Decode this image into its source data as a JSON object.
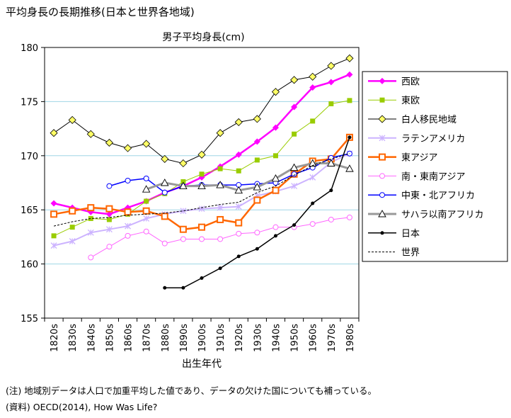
{
  "title": "平均身長の長期推移(日本と世界各地域)",
  "notes": {
    "note1": "(注) 地域別データは人口で加重平均した値であり、データの欠けた国についても補っている。",
    "note2": "(資料) OECD(2014), How Was Life?"
  },
  "chart_data": {
    "type": "line",
    "title": "男子平均身長(cm)",
    "xlabel": "出生年代",
    "ylabel": "",
    "ylim": [
      155,
      180
    ],
    "yticks": [
      155,
      160,
      165,
      170,
      175,
      180
    ],
    "categories": [
      "1820s",
      "1830s",
      "1840s",
      "1850s",
      "1860s",
      "1870s",
      "1880s",
      "1890s",
      "1900s",
      "1910s",
      "1920s",
      "1930s",
      "1940s",
      "1950s",
      "1960s",
      "1970s",
      "1980s"
    ],
    "grid": true,
    "legend": "right",
    "series": [
      {
        "name": "西欧",
        "color": "#ff00ff",
        "marker": "diamond",
        "width": 2.5,
        "values": [
          165.6,
          165.2,
          164.8,
          164.6,
          165.2,
          165.8,
          166.6,
          167.2,
          168.0,
          169.0,
          170.1,
          171.3,
          172.6,
          174.5,
          176.3,
          176.8,
          177.5
        ]
      },
      {
        "name": "東欧",
        "color": "#99cc00",
        "marker": "square",
        "width": 1,
        "values": [
          162.6,
          163.4,
          164.2,
          164.1,
          164.6,
          165.8,
          166.5,
          167.6,
          168.3,
          168.8,
          168.6,
          169.6,
          170.0,
          172.0,
          173.2,
          174.8,
          175.1
        ]
      },
      {
        "name": "白人移民地域",
        "color": "#000000",
        "marker": "diamond-yellow",
        "width": 1,
        "values": [
          172.1,
          173.3,
          172.0,
          171.2,
          170.7,
          171.1,
          169.7,
          169.3,
          170.1,
          172.1,
          173.1,
          173.4,
          175.9,
          177.0,
          177.3,
          178.3,
          179.0
        ]
      },
      {
        "name": "ラテンアメリカ",
        "color": "#ccb3ff",
        "marker": "star",
        "width": 2,
        "values": [
          161.7,
          162.1,
          162.9,
          163.2,
          163.5,
          164.2,
          164.6,
          164.9,
          165.1,
          165.2,
          165.3,
          166.3,
          166.7,
          167.2,
          168.0,
          169.4,
          170.2
        ]
      },
      {
        "name": "東アジア",
        "color": "#ff6600",
        "marker": "square-orange",
        "width": 2.5,
        "values": [
          164.6,
          164.9,
          165.2,
          165.1,
          164.8,
          164.9,
          164.4,
          163.2,
          163.4,
          164.1,
          163.8,
          165.9,
          166.8,
          168.3,
          169.5,
          169.7,
          171.7
        ]
      },
      {
        "name": "南・東南アジア",
        "color": "#ff66ff",
        "marker": "circle-open",
        "width": 1,
        "values": [
          null,
          null,
          160.6,
          161.6,
          162.6,
          163.0,
          161.9,
          162.3,
          162.3,
          162.3,
          162.8,
          162.9,
          163.4,
          163.4,
          163.7,
          164.1,
          164.3
        ]
      },
      {
        "name": "中東・北アフリカ",
        "color": "#0000ff",
        "marker": "circle-open",
        "width": 1.5,
        "values": [
          null,
          null,
          null,
          167.2,
          167.7,
          167.9,
          166.6,
          167.2,
          167.3,
          167.3,
          167.3,
          167.4,
          167.5,
          168.3,
          168.9,
          169.8,
          170.2
        ]
      },
      {
        "name": "サハラ以南アフリカ",
        "color": "#999999",
        "marker": "triangle-open",
        "width": 3,
        "values": [
          null,
          null,
          null,
          null,
          null,
          166.9,
          167.5,
          167.2,
          167.2,
          167.3,
          166.8,
          167.1,
          167.9,
          168.9,
          169.3,
          169.3,
          168.8
        ]
      },
      {
        "name": "日本",
        "color": "#000000",
        "marker": "dot",
        "width": 1.5,
        "values": [
          null,
          null,
          null,
          null,
          null,
          null,
          157.8,
          157.8,
          158.7,
          159.6,
          160.7,
          161.4,
          162.6,
          163.6,
          165.6,
          166.8,
          171.7
        ]
      },
      {
        "name": "世界",
        "color": "#000000",
        "marker": "none",
        "width": 1,
        "dash": "3,2",
        "values": [
          163.5,
          163.9,
          164.2,
          164.3,
          164.5,
          164.6,
          164.7,
          164.9,
          165.2,
          165.5,
          165.7,
          166.6,
          167.2,
          168.2,
          169.1,
          169.7,
          170.2
        ]
      }
    ]
  }
}
